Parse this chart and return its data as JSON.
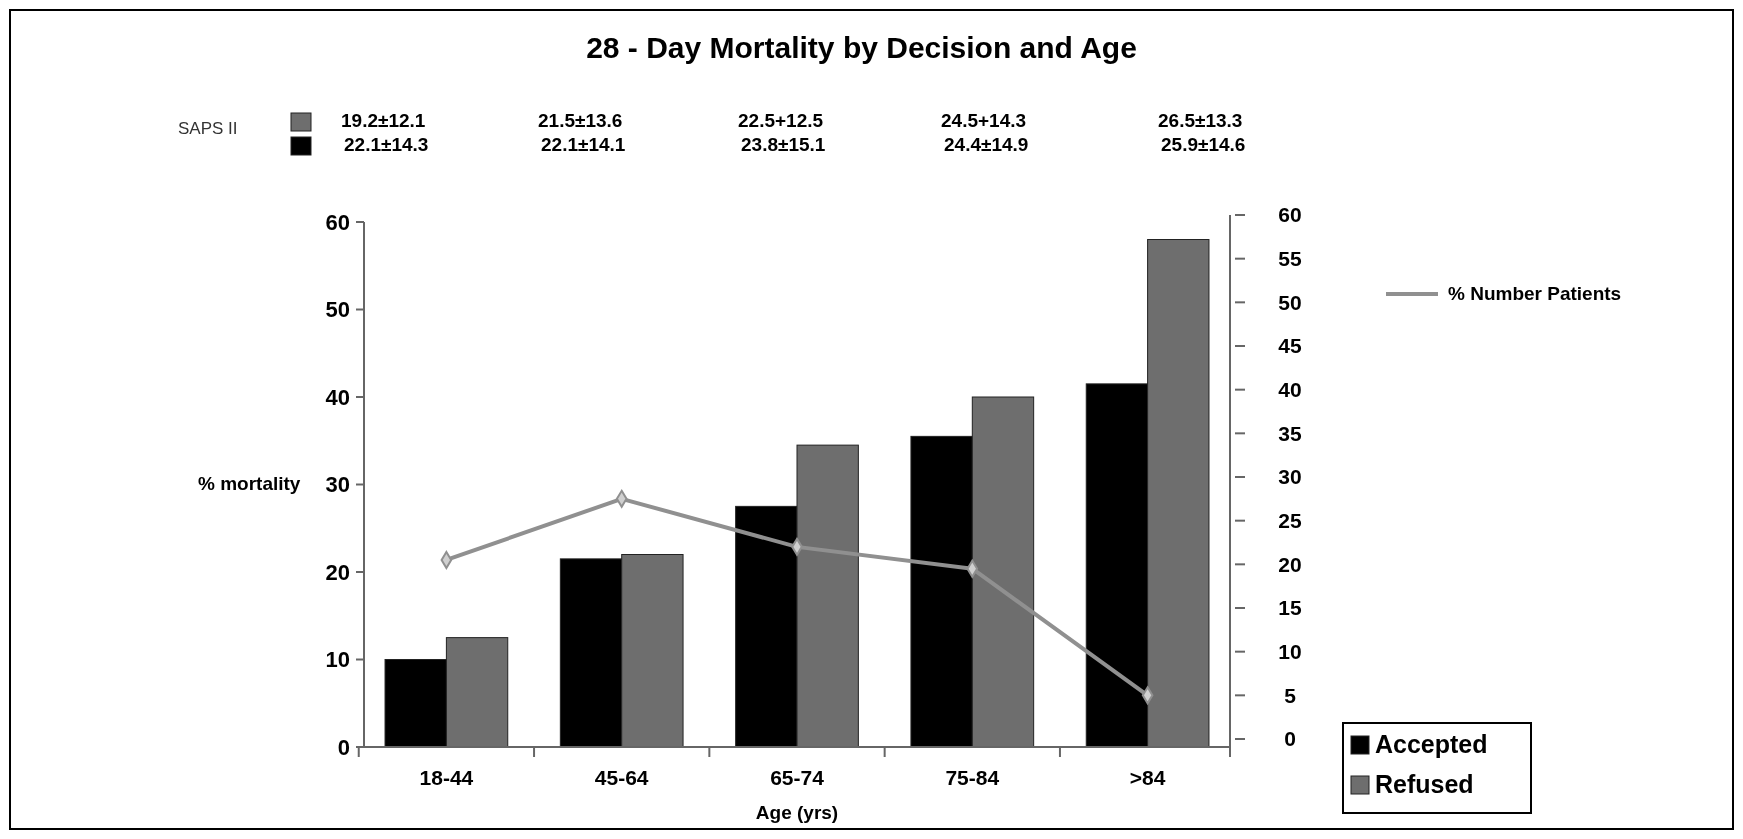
{
  "chart_data": {
    "type": "bar",
    "title": "28 - Day Mortality by Decision and Age",
    "xlabel": "Age (yrs)",
    "ylabel": "% mortality",
    "categories": [
      "18-44",
      "45-64",
      "65-74",
      "75-84",
      ">84"
    ],
    "series": [
      {
        "name": "Accepted",
        "color": "#000000",
        "values": [
          10,
          21.5,
          27.5,
          35.5,
          41.5
        ]
      },
      {
        "name": "Refused",
        "color": "#6e6e6e",
        "values": [
          12.5,
          22,
          34.5,
          40,
          58
        ]
      },
      {
        "name": "% Number Patients",
        "type": "line",
        "axis": "y2",
        "color": "#909090",
        "values": [
          20.5,
          27.5,
          22,
          19.5,
          5
        ]
      }
    ],
    "ylim": [
      0,
      60
    ],
    "yticks": [
      0,
      10,
      20,
      30,
      40,
      50,
      60
    ],
    "y2lim": [
      0,
      60
    ],
    "y2ticks": [
      0,
      5,
      10,
      15,
      20,
      25,
      30,
      35,
      40,
      45,
      50,
      55,
      60
    ],
    "marker": "diamond",
    "legend": "right",
    "grid": false,
    "annotations": [
      "SAPS II",
      "19.2±12.1",
      "21.5±13.6",
      "22.5+12.5",
      "24.5+14.3",
      "26.5±13.3",
      "22.1±14.3",
      "22.1±14.1",
      "23.8±15.1",
      "24.4±14.9",
      "25.9±14.6"
    ]
  }
}
